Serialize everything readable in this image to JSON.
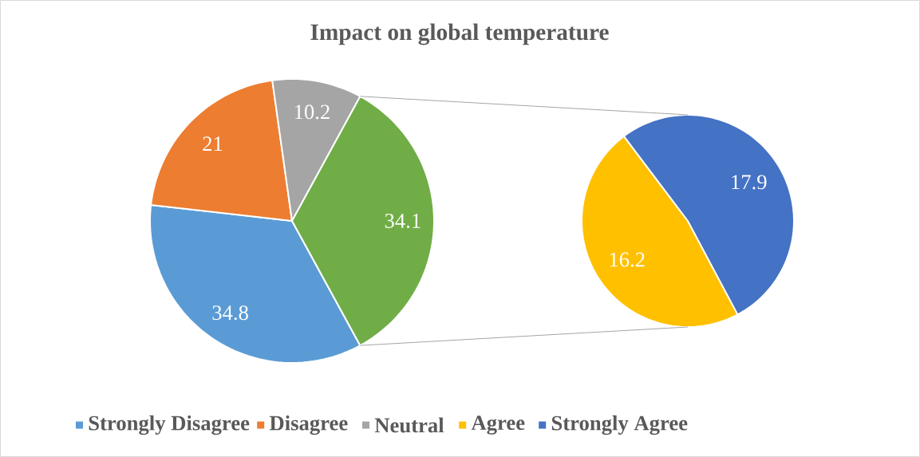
{
  "chart_data": [
    {
      "type": "pie",
      "title": "Impact on global temperature",
      "categories": [
        "Strongly Disagree",
        "Disagree",
        "Neutral",
        null
      ],
      "values": [
        34.8,
        21,
        10.2,
        34.1
      ],
      "colors": [
        "#5b9bd5",
        "#ed7d31",
        "#a5a5a5",
        "#70ad47"
      ],
      "data_labels": true,
      "legend": "bottom"
    },
    {
      "type": "pie",
      "categories": [
        "Agree",
        "Strongly Agree"
      ],
      "values": [
        16.2,
        17.9
      ],
      "colors": [
        "#ffc000",
        "#4472c4"
      ],
      "data_labels": true,
      "legend": "bottom"
    }
  ]
}
